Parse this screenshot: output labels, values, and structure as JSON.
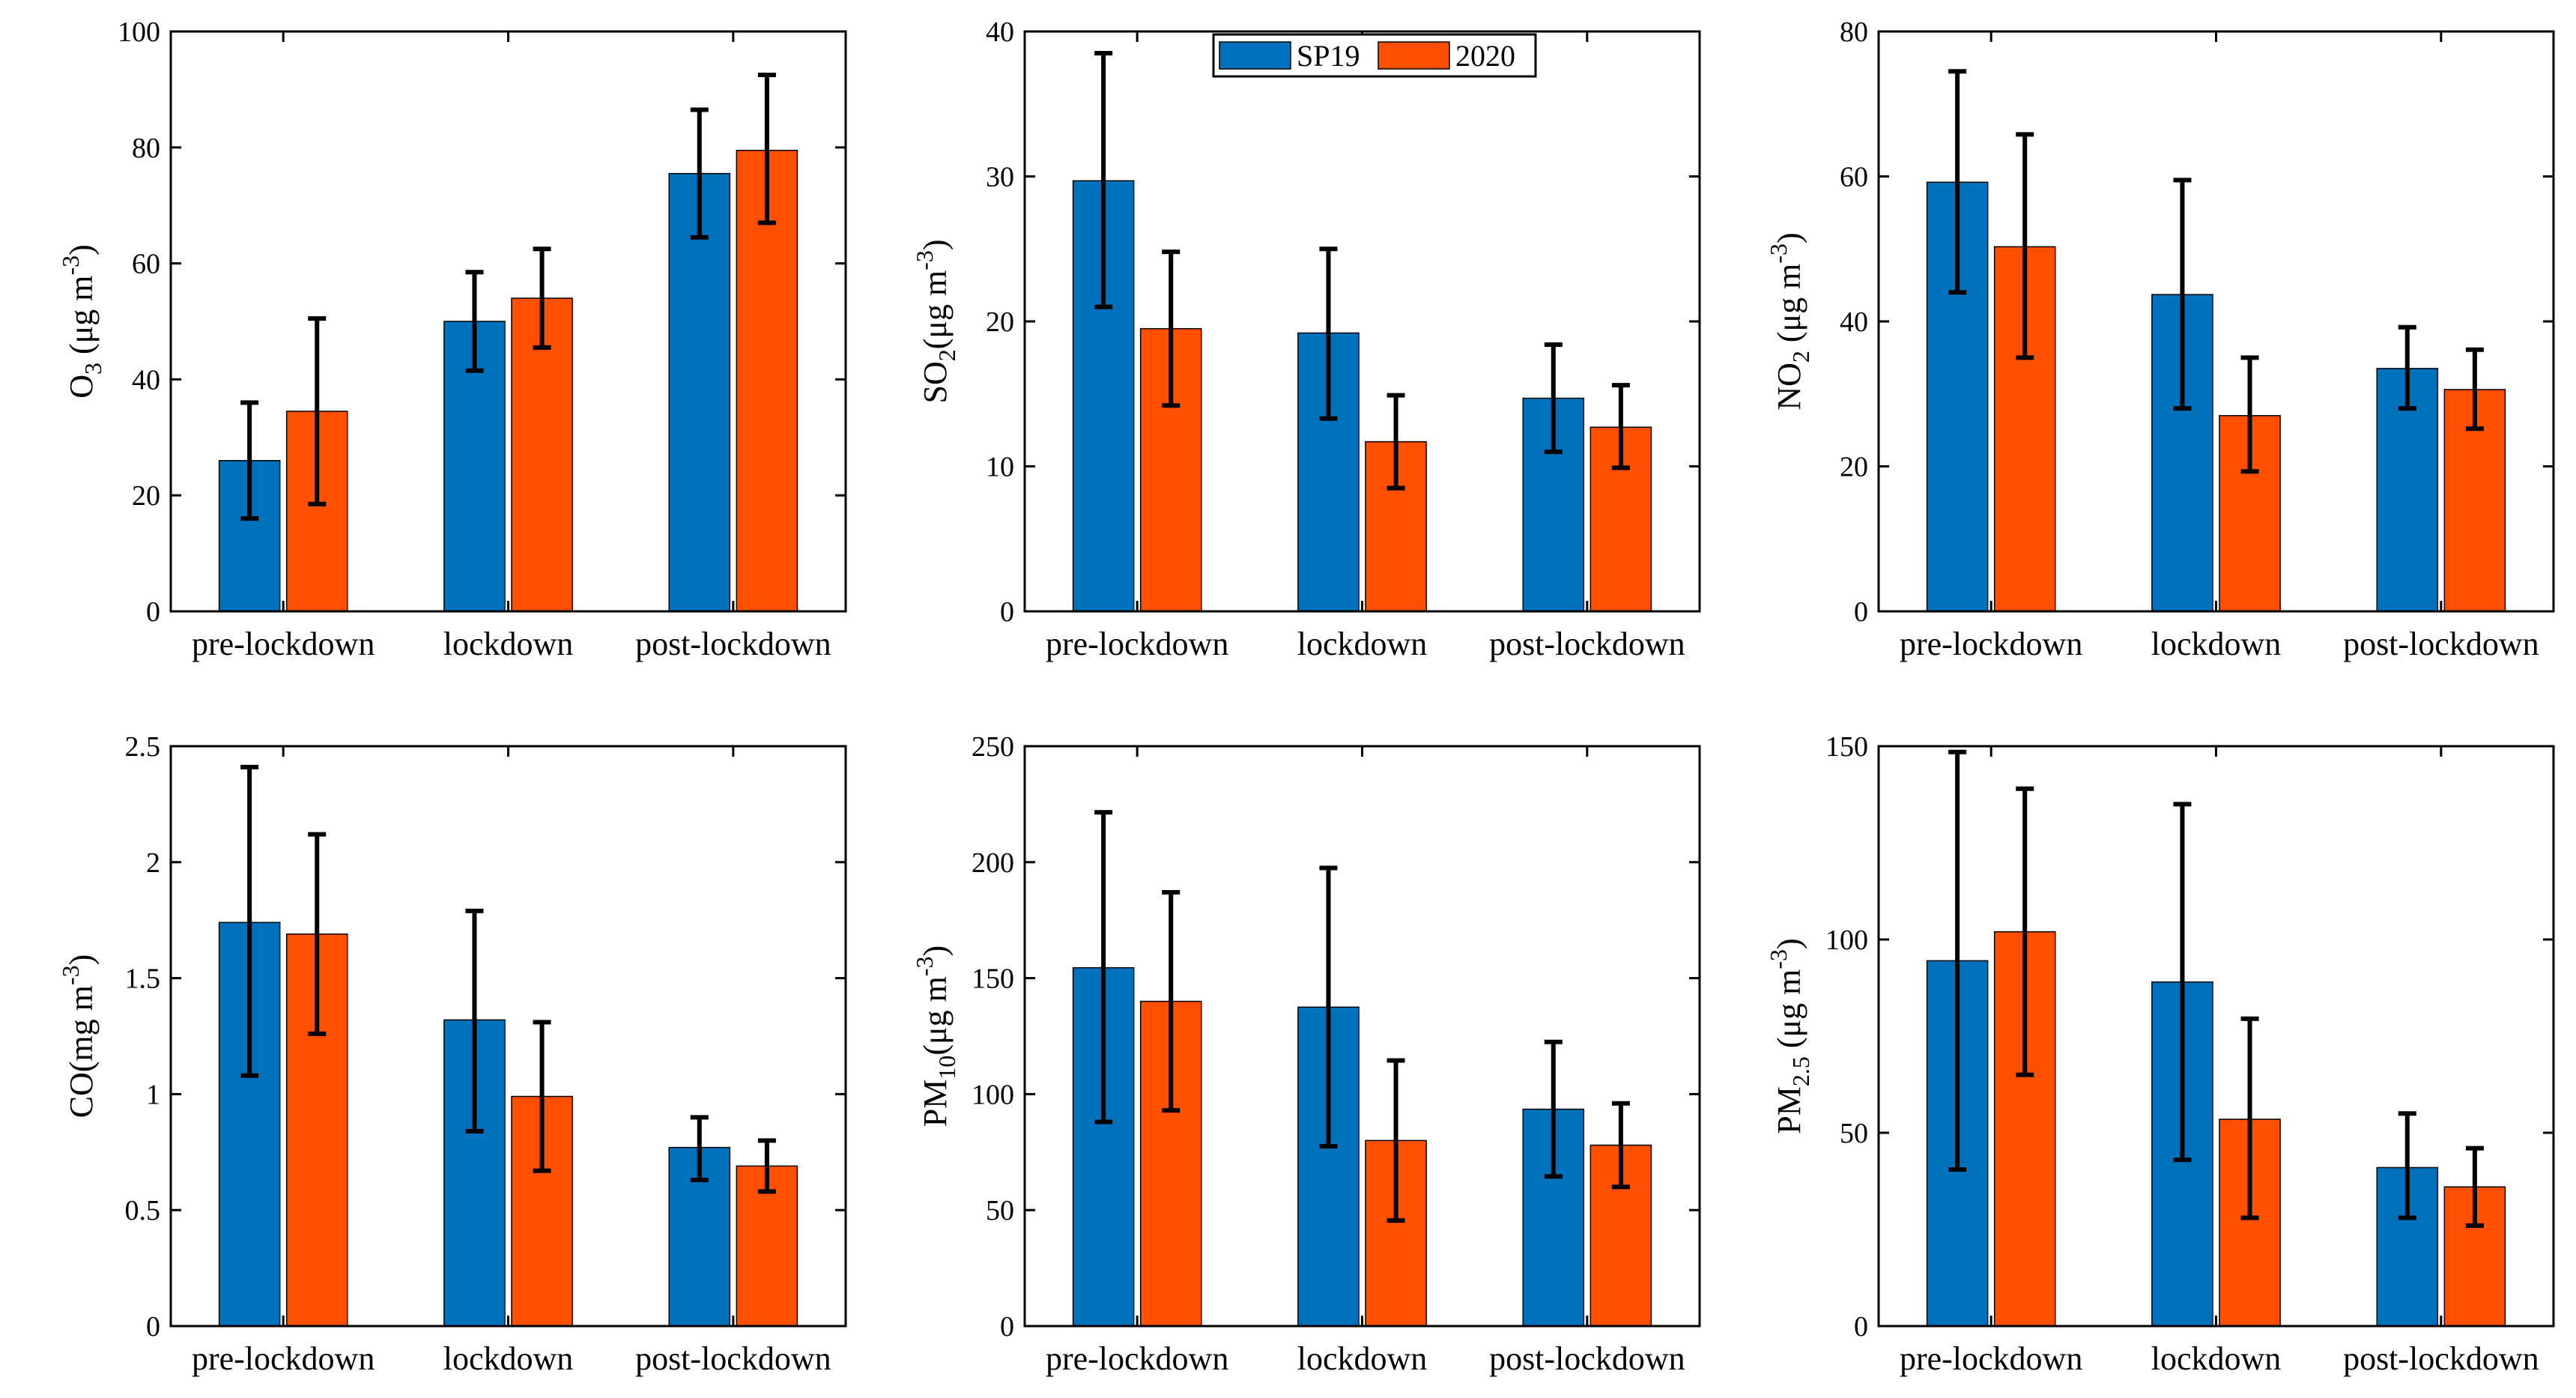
{
  "legend": {
    "entries": [
      {
        "name": "SP19",
        "color": "#0072BD"
      },
      {
        "name": "2020",
        "color": "#FF4F00"
      }
    ],
    "placement": "top-center"
  },
  "chart_data": [
    {
      "type": "bar",
      "ylabel": {
        "main": "O",
        "sub": "3",
        "rest": " (μg m",
        "sup": "-3",
        "end": ")"
      },
      "categories": [
        "pre-lockdown",
        "lockdown",
        "post-lockdown"
      ],
      "ylim": [
        0,
        100
      ],
      "yticks": [
        0,
        20,
        40,
        60,
        80,
        100
      ],
      "yticklabels": [
        "0",
        "20",
        "40",
        "60",
        "80",
        "100"
      ],
      "series": [
        {
          "name": "SP19",
          "values": [
            26,
            50,
            75.5
          ],
          "err_low": [
            16,
            41.5,
            64.5
          ],
          "err_high": [
            36,
            58.5,
            86.5
          ]
        },
        {
          "name": "2020",
          "values": [
            34.5,
            54,
            79.5
          ],
          "err_low": [
            18.5,
            45.5,
            67
          ],
          "err_high": [
            50.5,
            62.5,
            92.5
          ]
        }
      ]
    },
    {
      "type": "bar",
      "ylabel": {
        "main": "SO",
        "sub": "2",
        "rest": "(μg m",
        "sup": "-3",
        "end": ")"
      },
      "categories": [
        "pre-lockdown",
        "lockdown",
        "post-lockdown"
      ],
      "ylim": [
        0,
        40
      ],
      "yticks": [
        0,
        10,
        20,
        30,
        40
      ],
      "yticklabels": [
        "0",
        "10",
        "20",
        "30",
        "40"
      ],
      "series": [
        {
          "name": "SP19",
          "values": [
            29.7,
            19.2,
            14.7
          ],
          "err_low": [
            21,
            13.3,
            11
          ],
          "err_high": [
            38.5,
            25,
            18.4
          ]
        },
        {
          "name": "2020",
          "values": [
            19.5,
            11.7,
            12.7
          ],
          "err_low": [
            14.2,
            8.5,
            9.9
          ],
          "err_high": [
            24.8,
            14.9,
            15.6
          ]
        }
      ]
    },
    {
      "type": "bar",
      "ylabel": {
        "main": "NO",
        "sub": "2",
        "rest": " (μg m",
        "sup": "-3",
        "end": ")"
      },
      "categories": [
        "pre-lockdown",
        "lockdown",
        "post-lockdown"
      ],
      "ylim": [
        0,
        80
      ],
      "yticks": [
        0,
        20,
        40,
        60,
        80
      ],
      "yticklabels": [
        "0",
        "20",
        "40",
        "60",
        "80"
      ],
      "series": [
        {
          "name": "SP19",
          "values": [
            59.2,
            43.7,
            33.5
          ],
          "err_low": [
            44,
            28,
            28
          ],
          "err_high": [
            74.5,
            59.5,
            39.2
          ]
        },
        {
          "name": "2020",
          "values": [
            50.3,
            27,
            30.6
          ],
          "err_low": [
            35,
            19.3,
            25.2
          ],
          "err_high": [
            65.8,
            35,
            36.1
          ]
        }
      ]
    },
    {
      "type": "bar",
      "ylabel": {
        "main": "CO",
        "sub": "",
        "rest": "(mg m",
        "sup": "-3",
        "end": ")"
      },
      "categories": [
        "pre-lockdown",
        "lockdown",
        "post-lockdown"
      ],
      "ylim": [
        0,
        2.5
      ],
      "yticks": [
        0,
        0.5,
        1,
        1.5,
        2,
        2.5
      ],
      "yticklabels": [
        "0",
        "0.5",
        "1",
        "1.5",
        "2",
        "2.5"
      ],
      "series": [
        {
          "name": "SP19",
          "values": [
            1.74,
            1.32,
            0.77
          ],
          "err_low": [
            1.08,
            0.84,
            0.63
          ],
          "err_high": [
            2.41,
            1.79,
            0.9
          ]
        },
        {
          "name": "2020",
          "values": [
            1.69,
            0.99,
            0.69
          ],
          "err_low": [
            1.26,
            0.67,
            0.58
          ],
          "err_high": [
            2.12,
            1.31,
            0.8
          ]
        }
      ]
    },
    {
      "type": "bar",
      "ylabel": {
        "main": "PM",
        "sub": "10",
        "rest": "(μg m",
        "sup": "-3",
        "end": ")"
      },
      "categories": [
        "pre-lockdown",
        "lockdown",
        "post-lockdown"
      ],
      "ylim": [
        0,
        250
      ],
      "yticks": [
        0,
        50,
        100,
        150,
        200,
        250
      ],
      "yticklabels": [
        "0",
        "50",
        "100",
        "150",
        "200",
        "250"
      ],
      "series": [
        {
          "name": "SP19",
          "values": [
            154.5,
            137.5,
            93.5
          ],
          "err_low": [
            88,
            77.5,
            64.5
          ],
          "err_high": [
            221.5,
            197.5,
            122.5
          ]
        },
        {
          "name": "2020",
          "values": [
            140,
            80,
            78
          ],
          "err_low": [
            93,
            45.5,
            60
          ],
          "err_high": [
            187,
            114.5,
            96
          ]
        }
      ]
    },
    {
      "type": "bar",
      "ylabel": {
        "main": "PM",
        "sub": "2.5",
        "rest": " (μg m",
        "sup": "-3",
        "end": ")"
      },
      "categories": [
        "pre-lockdown",
        "lockdown",
        "post-lockdown"
      ],
      "ylim": [
        0,
        150
      ],
      "yticks": [
        0,
        50,
        100,
        150
      ],
      "yticklabels": [
        "0",
        "50",
        "100",
        "150"
      ],
      "series": [
        {
          "name": "SP19",
          "values": [
            94.5,
            89,
            41
          ],
          "err_low": [
            40.5,
            43,
            28
          ],
          "err_high": [
            148.5,
            135,
            55
          ]
        },
        {
          "name": "2020",
          "values": [
            102,
            53.5,
            36
          ],
          "err_low": [
            65,
            28,
            26
          ],
          "err_high": [
            139,
            79.5,
            46
          ]
        }
      ]
    }
  ]
}
